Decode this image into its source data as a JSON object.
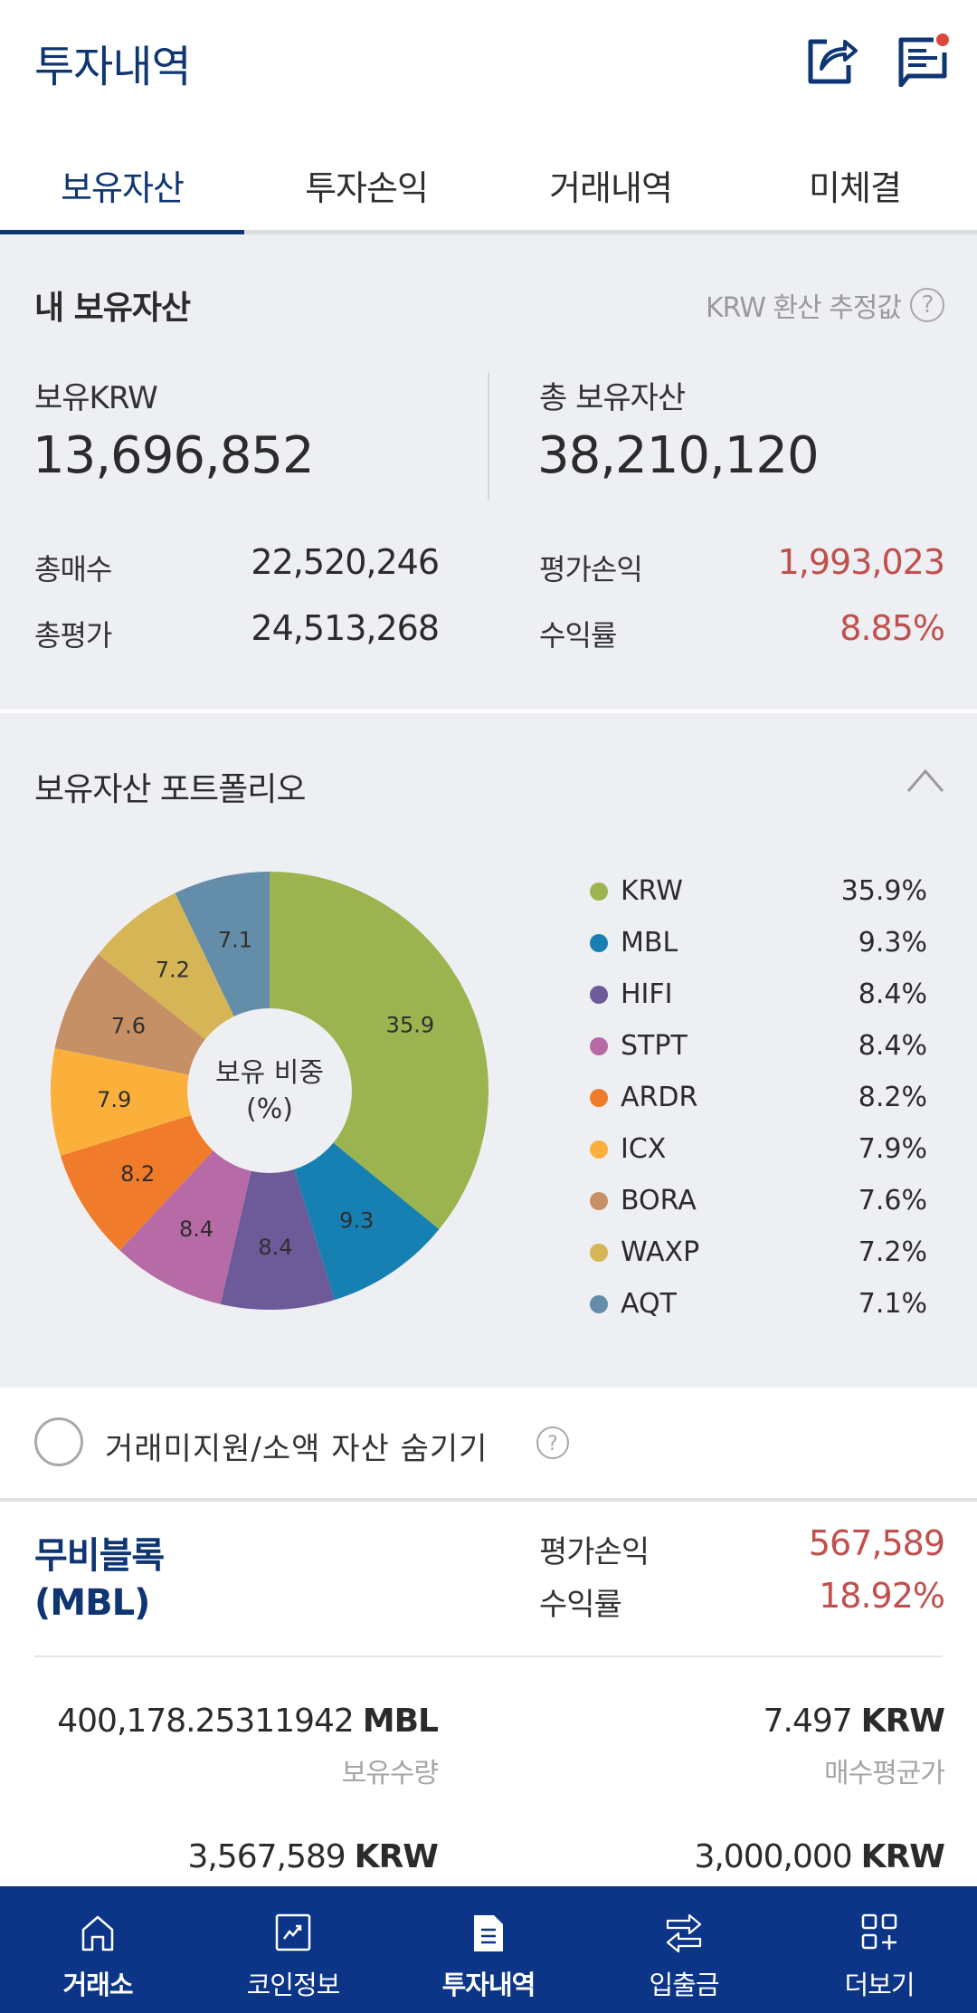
{
  "header": {
    "title": "투자내역",
    "icons": {
      "share": "share-icon",
      "notice": "notice-icon"
    },
    "notice_badge_color": "#d9483b"
  },
  "tabs": [
    {
      "label": "보유자산",
      "active": true
    },
    {
      "label": "투자손익",
      "active": false
    },
    {
      "label": "거래내역",
      "active": false
    },
    {
      "label": "미체결",
      "active": false
    }
  ],
  "summary": {
    "title": "내 보유자산",
    "krw_note": "KRW 환산 추정값",
    "help_icon": "?",
    "held_krw_label": "보유KRW",
    "held_krw_value": "13,696,852",
    "total_assets_label": "총 보유자산",
    "total_assets_value": "38,210,120",
    "rows": [
      {
        "label": "총매수",
        "value": "22,520,246"
      },
      {
        "label": "총평가",
        "value": "24,513,268"
      },
      {
        "label": "평가손익",
        "value": "1,993,023"
      },
      {
        "label": "수익률",
        "value": "8.85%"
      }
    ]
  },
  "portfolio": {
    "title": "보유자산 포트폴리오",
    "center_label_line1": "보유 비중",
    "center_label_line2": "(%)",
    "legend": [
      {
        "name": "KRW",
        "pct": "35.9%"
      },
      {
        "name": "MBL",
        "pct": "9.3%"
      },
      {
        "name": "HIFI",
        "pct": "8.4%"
      },
      {
        "name": "STPT",
        "pct": "8.4%"
      },
      {
        "name": "ARDR",
        "pct": "8.2%"
      },
      {
        "name": "ICX",
        "pct": "7.9%"
      },
      {
        "name": "BORA",
        "pct": "7.6%"
      },
      {
        "name": "WAXP",
        "pct": "7.2%"
      },
      {
        "name": "AQT",
        "pct": "7.1%"
      }
    ]
  },
  "chart_data": {
    "type": "pie",
    "title": "보유자산 포트폴리오",
    "center_label": "보유 비중 (%)",
    "categories": [
      "KRW",
      "MBL",
      "HIFI",
      "STPT",
      "ARDR",
      "ICX",
      "BORA",
      "WAXP",
      "AQT"
    ],
    "values": [
      35.9,
      9.3,
      8.4,
      8.4,
      8.2,
      7.9,
      7.6,
      7.2,
      7.1
    ],
    "colors": [
      "#9bb450",
      "#1780b2",
      "#6d5a98",
      "#b66ba6",
      "#f07b2a",
      "#fbb03b",
      "#c69066",
      "#d5b556",
      "#648daa"
    ],
    "donut": true,
    "legend_position": "right"
  },
  "hide_small": {
    "label": "거래미지원/소액 자산 숨기기",
    "checked": false
  },
  "asset": {
    "name": "무비블록",
    "symbol": "(MBL)",
    "pnl_label": "평가손익",
    "pnl_value": "567,589",
    "return_label": "수익률",
    "return_value": "18.92%",
    "quantity_value": "400,178.25311942",
    "quantity_unit": "MBL",
    "quantity_caption": "보유수량",
    "avg_price_value": "7.497",
    "avg_price_unit": "KRW",
    "avg_price_caption": "매수평균가",
    "eval_value": "3,567,589",
    "eval_unit": "KRW",
    "buy_value": "3,000,000",
    "buy_unit": "KRW"
  },
  "bottom_nav": [
    {
      "label": "거래소",
      "icon": "home-icon",
      "active": false
    },
    {
      "label": "코인정보",
      "icon": "chart-icon",
      "active": false
    },
    {
      "label": "투자내역",
      "icon": "document-icon",
      "active": true
    },
    {
      "label": "입출금",
      "icon": "transfer-icon",
      "active": false
    },
    {
      "label": "더보기",
      "icon": "more-grid-icon",
      "active": false
    }
  ]
}
